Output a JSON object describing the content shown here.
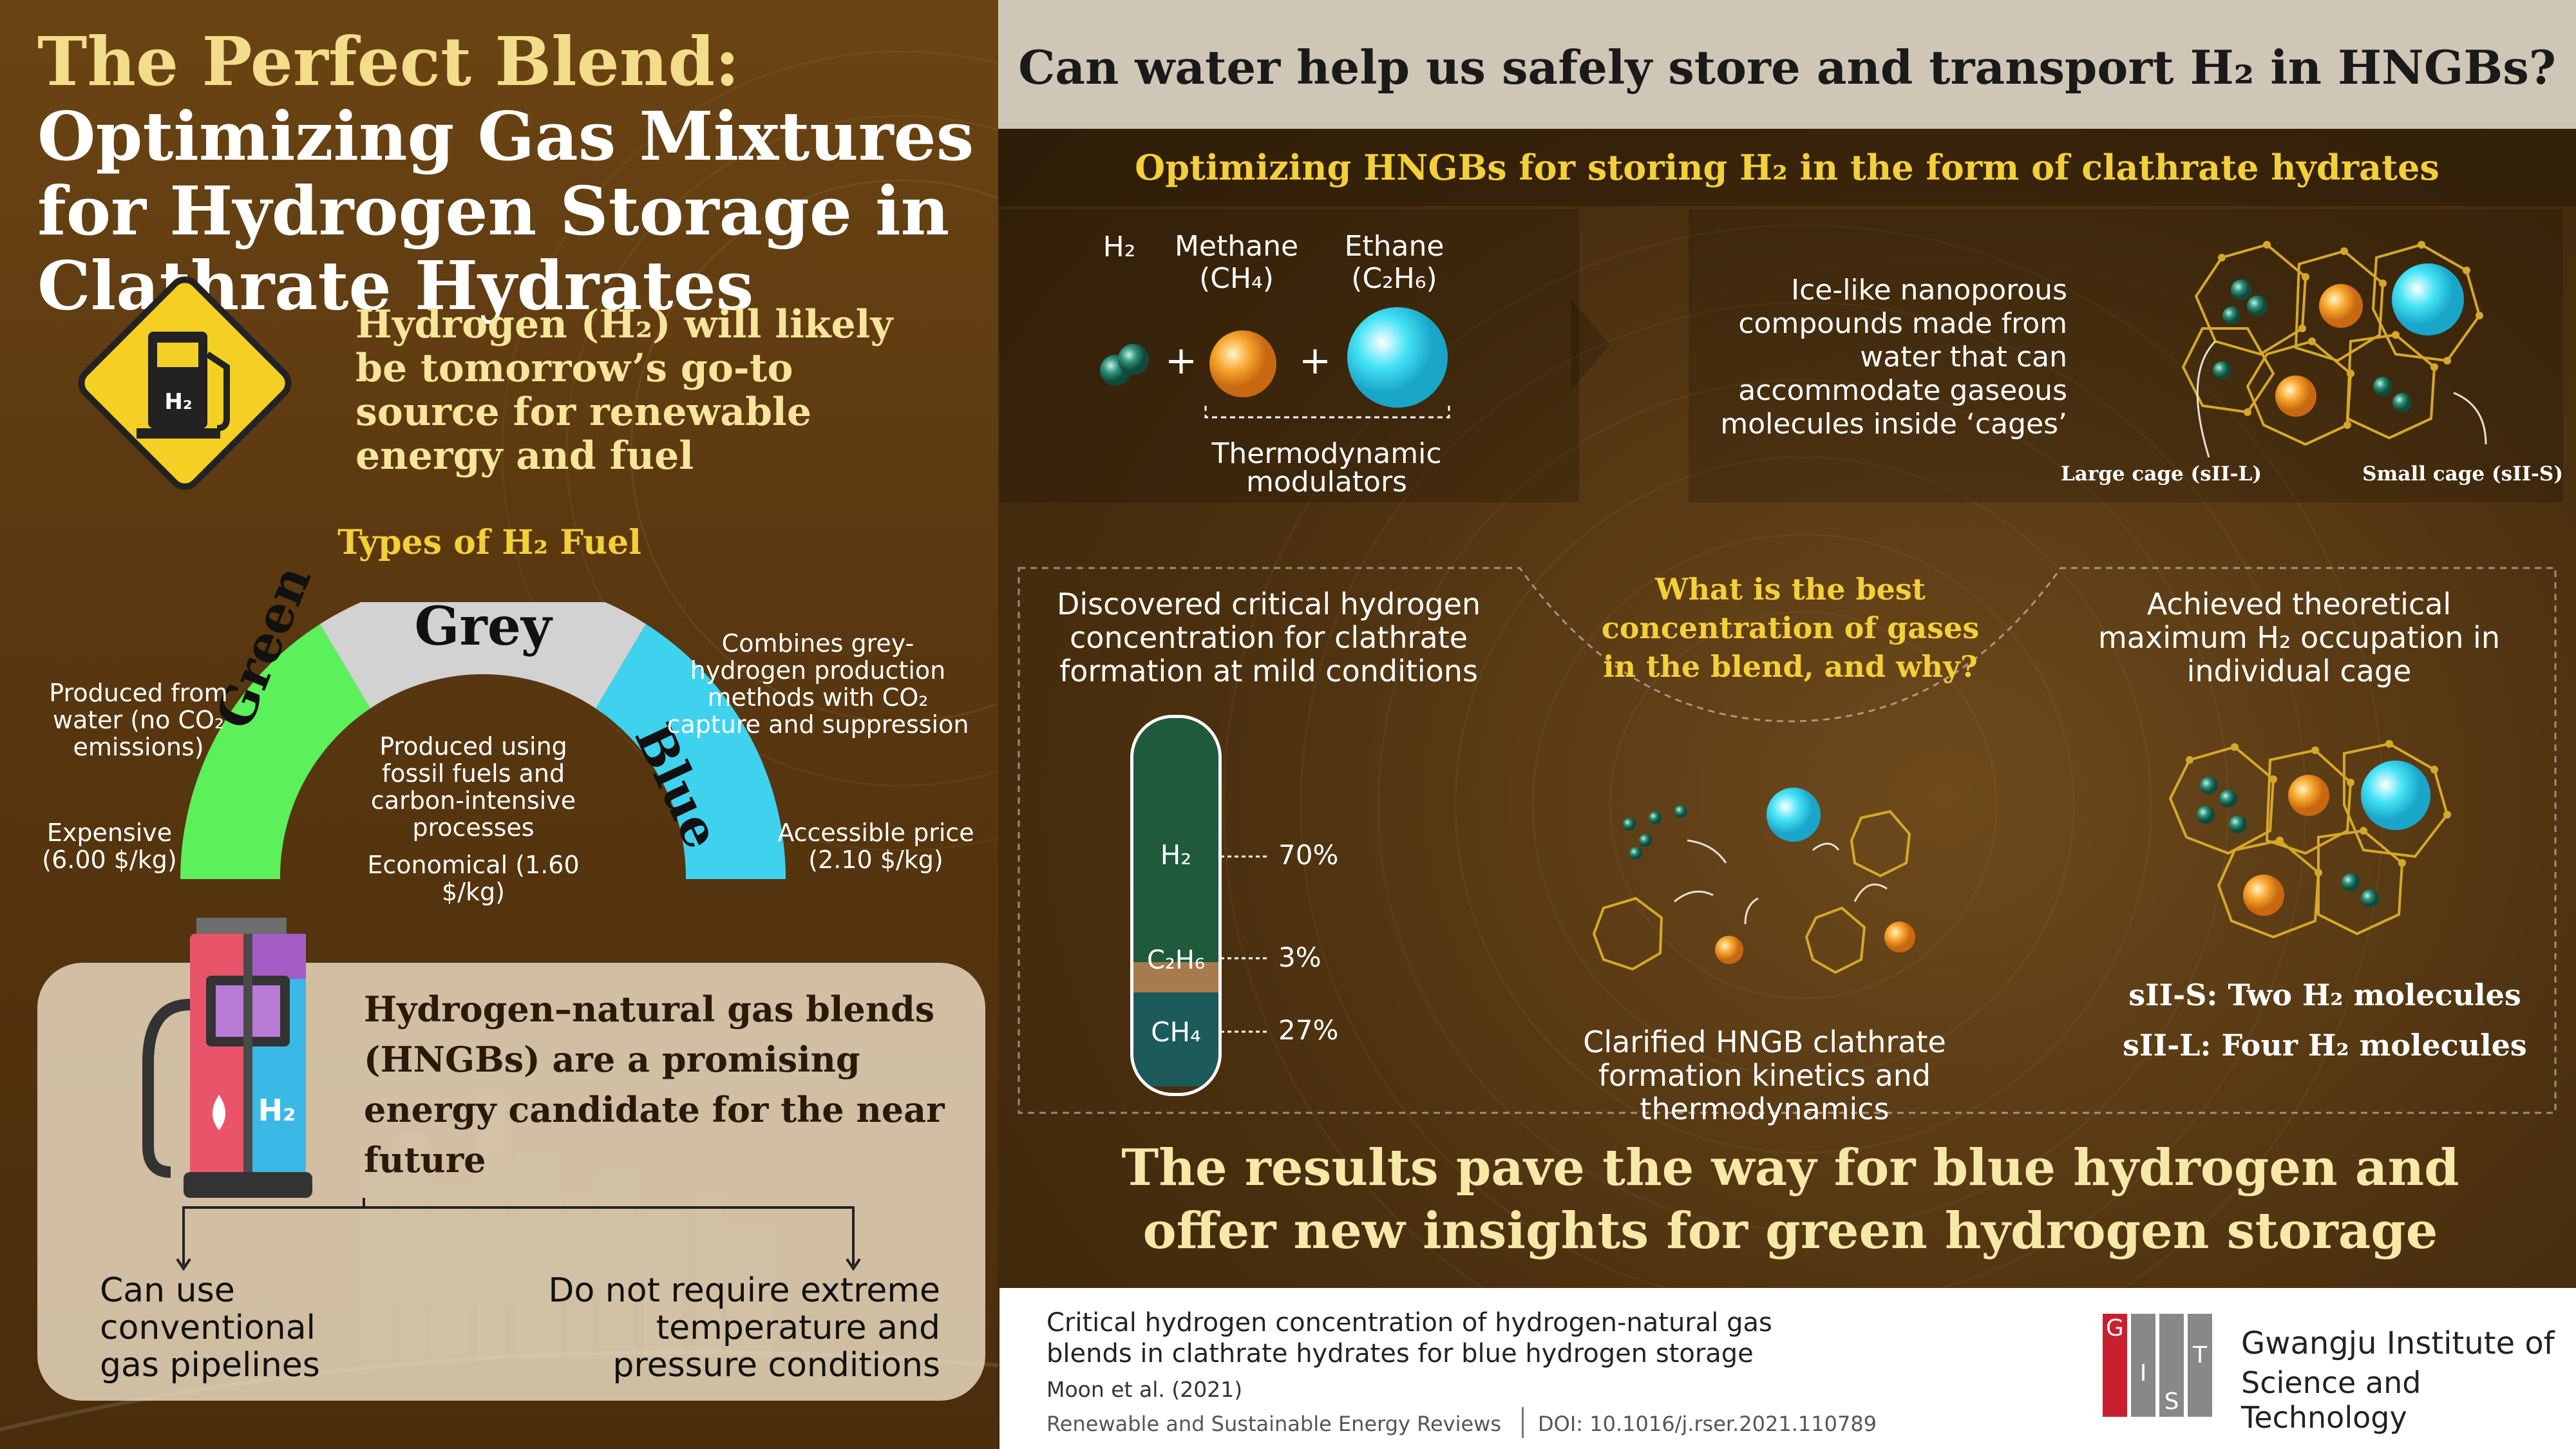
{
  "left": {
    "title": {
      "part1": "The Perfect Blend:",
      "part2": " Optimizing Gas Mixtures for Hydrogen Storage in Clathrate Hydrates"
    },
    "sign_label": "H₂",
    "lead": "Hydrogen (H₂) will likely be tomorrow’s go-to source for renewable energy and fuel",
    "types_title": "Types of H₂ Fuel",
    "green": {
      "label": "Green",
      "desc": "Produced from water (no CO₂ emissions)",
      "price": "Expensive (6.00 $/kg)"
    },
    "grey": {
      "label": "Grey",
      "desc": "Produced using fossil fuels and carbon-intensive processes",
      "price": "Economical (1.60 $/kg)"
    },
    "blue": {
      "label": "Blue",
      "desc": "Combines grey-hydrogen production methods with CO₂ capture and suppression",
      "price": "Accessible price (2.10 $/kg)"
    },
    "hngb_text": "Hydrogen–natural gas blends (HNGBs) are a promising energy candidate for the near future",
    "pump_label": "H₂",
    "benefit1": "Can use conventional gas pipelines",
    "benefit2": "Do not require extreme temperature and pressure conditions"
  },
  "right": {
    "question": "Can water help us safely store and transport H₂ in HNGBs?",
    "subtitle": "Optimizing HNGBs for storing H₂ in the form of clathrate hydrates",
    "gases": {
      "h2": "H₂",
      "methane": "Methane (CH₄)",
      "ethane": "Ethane (C₂H₆)",
      "modulators": "Thermodynamic modulators"
    },
    "clathrate_desc": "Ice-like nanoporous compounds made from water that can accommodate gaseous molecules inside ‘cages’",
    "large_cage": "Large cage (sII-L)",
    "small_cage": "Small cage (sII-S)",
    "finding1": "Discovered critical hydrogen concentration for clathrate formation at mild conditions",
    "center_q": "What is the best concentration of gases in the blend, and why?",
    "finding3": "Achieved theoretical maximum H₂ occupation in individual cage",
    "finding2": "Clarified HNGB clathrate formation kinetics and thermodynamics",
    "tube": [
      {
        "gas": "H₂",
        "pct": "70%",
        "value": 70,
        "color": "#1f5a3c"
      },
      {
        "gas": "C₂H₆",
        "pct": "3%",
        "value": 3,
        "color": "#a87b4c"
      },
      {
        "gas": "CH₄",
        "pct": "27%",
        "value": 27,
        "color": "#1c5a5c"
      }
    ],
    "sII_S": "sII-S: Two H₂ molecules",
    "sII_L": "sII-L: Four H₂ molecules",
    "conclusion": "The results pave the way for blue hydrogen and offer new insights for green hydrogen storage"
  },
  "footer": {
    "paper_title": "Critical hydrogen concentration of hydrogen-natural gas blends in clathrate hydrates for blue hydrogen storage",
    "authors": "Moon et al. (2021)",
    "journal": "Renewable and Sustainable Energy Reviews",
    "doi": "DOI: 10.1016/j.rser.2021.110789",
    "logo_letters": [
      "G",
      "I",
      "S",
      "T"
    ],
    "institute_line1": "Gwangju Institute of",
    "institute_line2": "Science and Technology"
  },
  "colors": {
    "green": "#5cf05a",
    "grey": "#d2d2d2",
    "blue": "#3fd2ee",
    "accent_yellow": "#f3cf3a",
    "gist_red": "#c8202f"
  }
}
